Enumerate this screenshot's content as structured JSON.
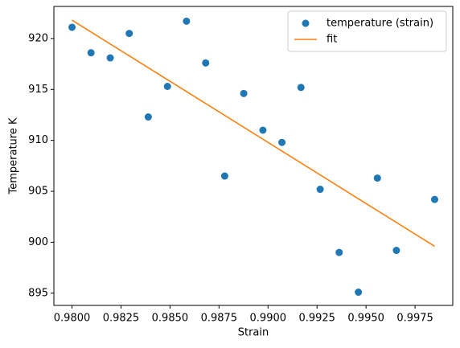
{
  "chart_data": {
    "type": "scatter",
    "xlabel": "Strain",
    "ylabel": "Temperature K",
    "xlim": [
      0.979075,
      0.999425
    ],
    "ylim": [
      893.8,
      923.15
    ],
    "xticks": [
      {
        "value": 0.98,
        "label": "0.9800"
      },
      {
        "value": 0.9825,
        "label": "0.9825"
      },
      {
        "value": 0.985,
        "label": "0.9850"
      },
      {
        "value": 0.9875,
        "label": "0.9875"
      },
      {
        "value": 0.99,
        "label": "0.9900"
      },
      {
        "value": 0.9925,
        "label": "0.9925"
      },
      {
        "value": 0.995,
        "label": "0.9950"
      },
      {
        "value": 0.9975,
        "label": "0.9975"
      }
    ],
    "yticks": [
      895,
      900,
      905,
      910,
      915,
      920
    ],
    "grid": false,
    "legend": "upper right",
    "series": [
      {
        "name": "temperature (strain)",
        "kind": "scatter",
        "color": "#1f77b4",
        "x": [
          0.98,
          0.98097,
          0.98195,
          0.98292,
          0.98389,
          0.98487,
          0.98584,
          0.98682,
          0.98779,
          0.98876,
          0.98974,
          0.99071,
          0.99168,
          0.99266,
          0.99363,
          0.99461,
          0.99558,
          0.99655,
          0.9985
        ],
        "values": [
          921.1,
          918.6,
          918.1,
          920.5,
          912.3,
          915.3,
          921.7,
          917.6,
          906.5,
          914.6,
          911.0,
          909.8,
          915.2,
          905.2,
          899.0,
          895.1,
          906.3,
          899.2,
          904.2
        ]
      },
      {
        "name": "fit",
        "kind": "line",
        "color": "#ff7f0e",
        "x": [
          0.98,
          0.9985
        ],
        "values": [
          921.8,
          899.6
        ]
      }
    ]
  }
}
